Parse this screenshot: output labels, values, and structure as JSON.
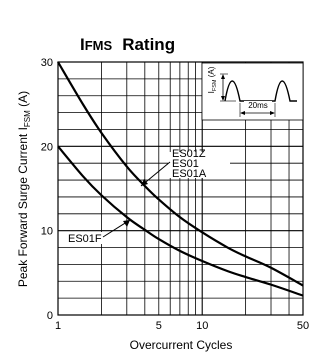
{
  "chart_data": {
    "type": "line",
    "title_main": "I",
    "title_sub": "FMS",
    "title_rest": "Rating",
    "xlabel": "Overcurrent Cycles",
    "ylabel_main": "Peak Forward Surge Current  I",
    "ylabel_sub": "FSM",
    "ylabel_unit": " (A)",
    "x_scale": "log",
    "xlim": [
      1,
      50
    ],
    "ylim": [
      0,
      30
    ],
    "x_ticks": [
      1,
      5,
      10,
      50
    ],
    "x_ticklabels": [
      "1",
      "5",
      "10",
      "50"
    ],
    "y_ticks": [
      0,
      10,
      20,
      30
    ],
    "y_ticklabels": [
      "0",
      "10",
      "20",
      "30"
    ],
    "grid": true,
    "series": [
      {
        "name": "ES01Z / ES01 / ES01A",
        "label_lines": [
          "ES01Z",
          "ES01",
          "ES01A"
        ],
        "x": [
          1,
          1.5,
          2,
          3,
          4,
          5,
          7,
          10,
          15,
          20,
          30,
          50
        ],
        "y": [
          30,
          24.9,
          21.6,
          17.6,
          15.3,
          13.7,
          11.6,
          9.8,
          8.0,
          6.95,
          5.6,
          3.5
        ]
      },
      {
        "name": "ES01F",
        "label_lines": [
          "ES01F"
        ],
        "x": [
          1,
          1.5,
          2,
          3,
          4,
          5,
          7,
          10,
          15,
          20,
          30,
          50
        ],
        "y": [
          20,
          16.4,
          14.2,
          11.6,
          10.1,
          9.0,
          7.6,
          6.4,
          5.2,
          4.5,
          3.6,
          2.3
        ]
      }
    ],
    "inset": {
      "ylabel_main": "I",
      "ylabel_sub": "FSM",
      "ylabel_unit": " (A)",
      "period_label": "20ms"
    }
  }
}
